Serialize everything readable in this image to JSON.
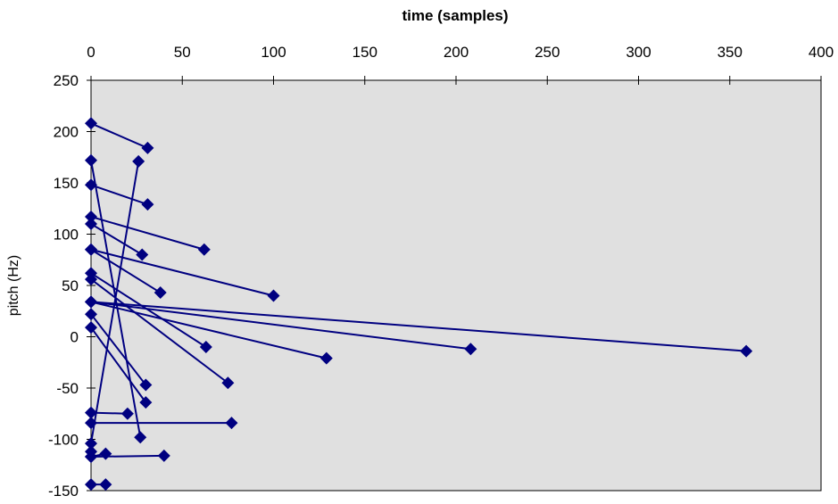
{
  "chart_data": {
    "type": "scatter",
    "title": "",
    "xlabel": "time (samples)",
    "ylabel": "pitch (Hz)",
    "xlim": [
      0,
      400
    ],
    "ylim": [
      -150,
      250
    ],
    "x_axis_position": "top",
    "x_ticks": [
      0,
      50,
      100,
      150,
      200,
      250,
      300,
      350,
      400
    ],
    "y_ticks": [
      250,
      200,
      150,
      100,
      50,
      0,
      -50,
      -100,
      -150
    ],
    "grid": false,
    "legend": "none",
    "colors": {
      "plot_background": "#e0e0e0",
      "series": "#000080",
      "frame": "#000000"
    },
    "segments": [
      {
        "x": [
          0,
          31
        ],
        "y": [
          208,
          184
        ]
      },
      {
        "x": [
          0,
          31
        ],
        "y": [
          148,
          129
        ]
      },
      {
        "x": [
          0,
          62
        ],
        "y": [
          117,
          85
        ]
      },
      {
        "x": [
          0,
          28
        ],
        "y": [
          110,
          80
        ]
      },
      {
        "x": [
          0,
          38
        ],
        "y": [
          85,
          43
        ]
      },
      {
        "x": [
          0,
          100
        ],
        "y": [
          85,
          40
        ]
      },
      {
        "x": [
          0,
          63
        ],
        "y": [
          62,
          -10
        ]
      },
      {
        "x": [
          0,
          75
        ],
        "y": [
          56,
          -45
        ]
      },
      {
        "x": [
          0,
          129
        ],
        "y": [
          34,
          -21
        ]
      },
      {
        "x": [
          0,
          208
        ],
        "y": [
          34,
          -12
        ]
      },
      {
        "x": [
          0,
          359
        ],
        "y": [
          34,
          -14
        ]
      },
      {
        "x": [
          0,
          30
        ],
        "y": [
          22,
          -47
        ]
      },
      {
        "x": [
          0,
          30
        ],
        "y": [
          9,
          -64
        ]
      },
      {
        "x": [
          0,
          27
        ],
        "y": [
          172,
          -98
        ]
      },
      {
        "x": [
          0,
          26
        ],
        "y": [
          -104,
          171
        ]
      },
      {
        "x": [
          0,
          20
        ],
        "y": [
          -74,
          -75
        ]
      },
      {
        "x": [
          0,
          77
        ],
        "y": [
          -84,
          -84
        ]
      },
      {
        "x": [
          0,
          8
        ],
        "y": [
          -117,
          -114
        ]
      },
      {
        "x": [
          0,
          40
        ],
        "y": [
          -117,
          -116
        ]
      },
      {
        "x": [
          0,
          8
        ],
        "y": [
          -144,
          -144
        ]
      }
    ],
    "extra_points": [
      {
        "x": 0,
        "y": -112
      }
    ]
  }
}
